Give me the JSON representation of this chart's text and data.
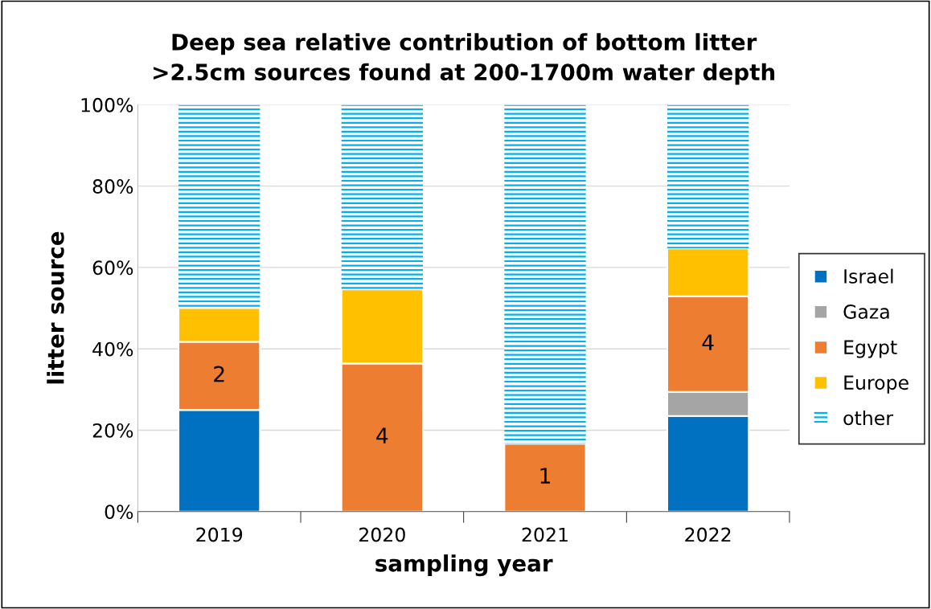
{
  "chart_data": {
    "type": "bar",
    "stacked": true,
    "title": "Deep sea relative contribution of bottom litter\n>2.5cm sources found at 200-1700m water depth",
    "xlabel": "sampling year",
    "ylabel": "litter source",
    "categories": [
      "2019",
      "2020",
      "2021",
      "2022"
    ],
    "series": [
      {
        "name": "Israel",
        "color": "#0070c0",
        "values": [
          25.0,
          0,
          0,
          23.5
        ]
      },
      {
        "name": "Gaza",
        "color": "#a5a5a5",
        "values": [
          0,
          0,
          0,
          5.9
        ]
      },
      {
        "name": "Egypt",
        "color": "#ed7d31",
        "values": [
          16.7,
          36.4,
          16.7,
          23.5
        ]
      },
      {
        "name": "Europe",
        "color": "#ffc000",
        "values": [
          8.3,
          18.2,
          0,
          11.8
        ]
      },
      {
        "name": "other",
        "color": "#00b0f0",
        "values": [
          50.0,
          45.4,
          83.3,
          35.3
        ]
      }
    ],
    "ylim": [
      0,
      100
    ],
    "yticks": [
      {
        "value": 0,
        "label": "0%"
      },
      {
        "value": 20,
        "label": "20%"
      },
      {
        "value": 40,
        "label": "40%"
      },
      {
        "value": 60,
        "label": "60%"
      },
      {
        "value": 80,
        "label": "80%"
      },
      {
        "value": 100,
        "label": "100%"
      }
    ],
    "annotations": [
      "2",
      "4",
      "1",
      "4"
    ],
    "grid": "y",
    "legend": "right"
  }
}
